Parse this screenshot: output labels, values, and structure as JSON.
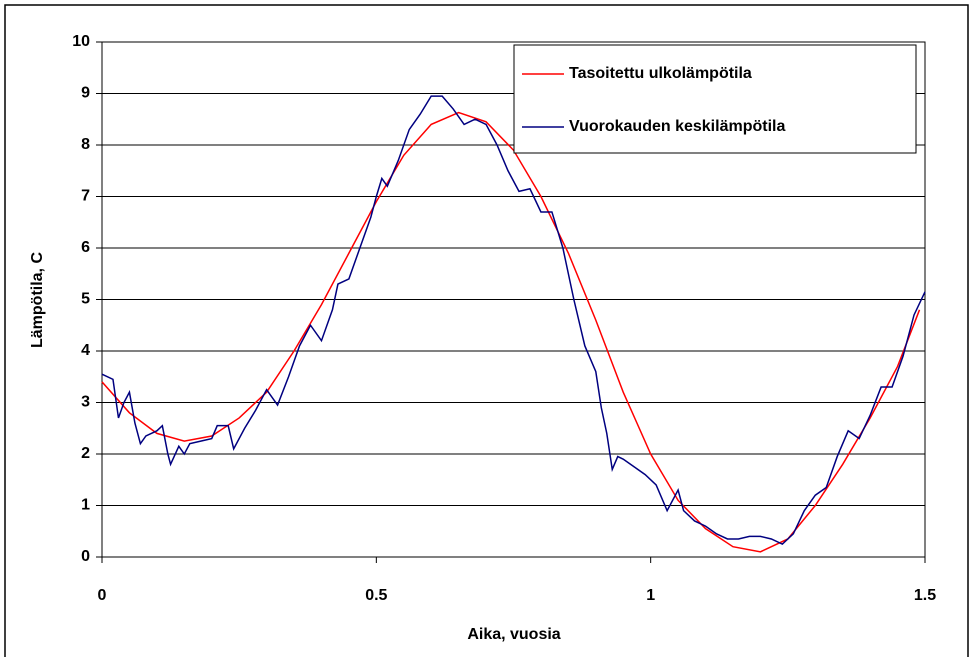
{
  "chart_data": {
    "type": "line",
    "xlabel": "Aika, vuosia",
    "ylabel": "Lämpötila, C",
    "xlim": [
      0,
      1.5
    ],
    "xticks": [
      0,
      0.5,
      1,
      1.5
    ],
    "ylim": [
      0,
      10
    ],
    "yticks": [
      0,
      1,
      2,
      3,
      4,
      5,
      6,
      7,
      8,
      9,
      10
    ],
    "grid": true,
    "legend": "top right",
    "series": [
      {
        "name": "Tasoitettu ulkolämpötila",
        "color": "#ff0000",
        "x": [
          0,
          0.05,
          0.1,
          0.15,
          0.2,
          0.25,
          0.3,
          0.35,
          0.4,
          0.45,
          0.5,
          0.55,
          0.6,
          0.65,
          0.7,
          0.75,
          0.8,
          0.85,
          0.9,
          0.95,
          1.0,
          1.05,
          1.1,
          1.15,
          1.2,
          1.25,
          1.3,
          1.35,
          1.4,
          1.45,
          1.49
        ],
        "values": [
          3.4,
          2.8,
          2.4,
          2.25,
          2.35,
          2.7,
          3.2,
          4.0,
          4.9,
          5.9,
          6.9,
          7.8,
          8.4,
          8.63,
          8.45,
          7.9,
          7.0,
          5.9,
          4.6,
          3.2,
          2.0,
          1.1,
          0.55,
          0.2,
          0.1,
          0.35,
          1.0,
          1.8,
          2.7,
          3.7,
          4.8
        ]
      },
      {
        "name": "Vuorokauden keskilämpötila",
        "color": "#000080",
        "x": [
          0,
          0.02,
          0.03,
          0.04,
          0.05,
          0.06,
          0.07,
          0.08,
          0.1,
          0.11,
          0.12,
          0.125,
          0.14,
          0.15,
          0.16,
          0.18,
          0.2,
          0.21,
          0.23,
          0.24,
          0.26,
          0.28,
          0.3,
          0.32,
          0.34,
          0.36,
          0.38,
          0.4,
          0.42,
          0.43,
          0.45,
          0.47,
          0.49,
          0.5,
          0.51,
          0.52,
          0.54,
          0.56,
          0.58,
          0.6,
          0.62,
          0.64,
          0.66,
          0.68,
          0.7,
          0.72,
          0.74,
          0.76,
          0.78,
          0.8,
          0.82,
          0.84,
          0.86,
          0.88,
          0.9,
          0.91,
          0.92,
          0.93,
          0.94,
          0.95,
          0.97,
          0.99,
          1.01,
          1.03,
          1.05,
          1.06,
          1.08,
          1.1,
          1.12,
          1.14,
          1.16,
          1.18,
          1.2,
          1.22,
          1.24,
          1.26,
          1.28,
          1.3,
          1.32,
          1.34,
          1.36,
          1.38,
          1.4,
          1.42,
          1.44,
          1.46,
          1.48,
          1.5
        ],
        "values": [
          3.55,
          3.45,
          2.7,
          3.0,
          3.2,
          2.6,
          2.2,
          2.35,
          2.45,
          2.55,
          2.0,
          1.8,
          2.15,
          2.0,
          2.2,
          2.25,
          2.3,
          2.55,
          2.55,
          2.1,
          2.5,
          2.85,
          3.25,
          2.95,
          3.5,
          4.1,
          4.5,
          4.2,
          4.8,
          5.3,
          5.4,
          6.0,
          6.6,
          7.0,
          7.35,
          7.2,
          7.7,
          8.3,
          8.6,
          8.95,
          8.95,
          8.7,
          8.4,
          8.5,
          8.4,
          8.0,
          7.5,
          7.1,
          7.15,
          6.7,
          6.7,
          6.0,
          5.0,
          4.1,
          3.6,
          2.9,
          2.4,
          1.7,
          1.95,
          1.9,
          1.75,
          1.6,
          1.4,
          0.9,
          1.3,
          0.9,
          0.7,
          0.6,
          0.45,
          0.35,
          0.35,
          0.4,
          0.4,
          0.35,
          0.25,
          0.45,
          0.9,
          1.2,
          1.35,
          1.95,
          2.45,
          2.3,
          2.75,
          3.3,
          3.3,
          3.9,
          4.7,
          5.15
        ]
      }
    ]
  }
}
